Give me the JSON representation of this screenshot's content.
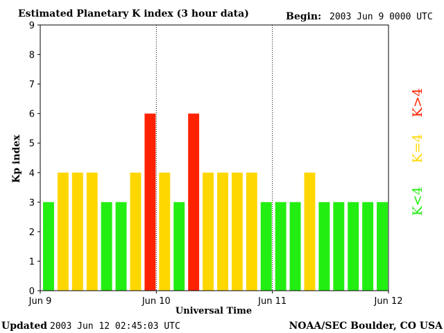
{
  "chart_data": {
    "type": "bar",
    "title": "Estimated Planetary K index (3 hour data)",
    "begin_label": "Begin:",
    "begin_value": "2003 Jun 9 0000 UTC",
    "xlabel": "Universal Time",
    "ylabel": "Kp index",
    "ylim": [
      0,
      9
    ],
    "y_ticks": [
      "0",
      "1",
      "2",
      "3",
      "4",
      "5",
      "6",
      "7",
      "8",
      "9"
    ],
    "x_ticks": [
      "Jun 9",
      "Jun 10",
      "Jun 11",
      "Jun 12"
    ],
    "bins_per_day": 8,
    "values": [
      3,
      4,
      4,
      4,
      3,
      3,
      4,
      6,
      4,
      3,
      6,
      4,
      4,
      4,
      4,
      3,
      3,
      3,
      4,
      3,
      3,
      3,
      3,
      3
    ],
    "legend": [
      {
        "label": "K<4",
        "color": "#22ee11"
      },
      {
        "label": "K=4",
        "color": "#ffd700"
      },
      {
        "label": "K>4",
        "color": "#ff2200"
      }
    ],
    "day_separators": "dotted"
  },
  "footer": {
    "updated_label": "Updated",
    "updated_value": "2003 Jun 12 02:45:03 UTC",
    "source": "NOAA/SEC Boulder, CO USA"
  }
}
